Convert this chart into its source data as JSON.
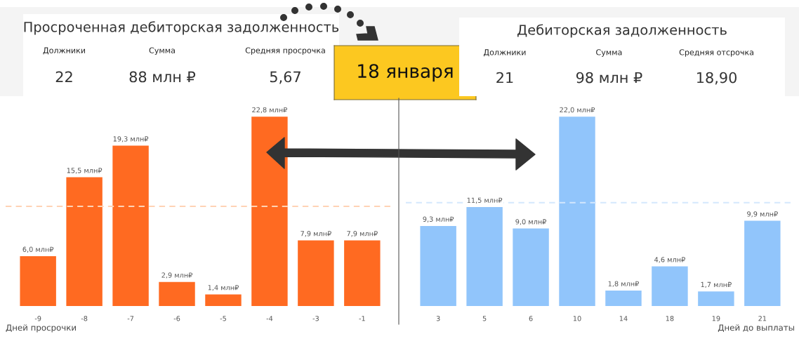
{
  "chart_data": [
    {
      "type": "other",
      "title": "Просроченная дебиторская задолженность",
      "categories": [
        "Должники",
        "Сумма",
        "Средняя просрочка"
      ],
      "value_labels": [
        "22",
        "88 млн ₽",
        "5,67"
      ]
    },
    {
      "type": "other",
      "title": "18 января"
    },
    {
      "type": "other",
      "title": "Дебиторская задолженность",
      "categories": [
        "Должники",
        "Сумма",
        "Средняя отсрочка"
      ],
      "value_labels": [
        "21",
        "98 млн ₽",
        "18,90"
      ]
    },
    {
      "type": "bar",
      "xlabel": "Дней просрочки",
      "categories": [
        "-9",
        "-8",
        "-7",
        "-6",
        "-5",
        "-4",
        "-3",
        "-1"
      ],
      "series": [
        {
          "color": "#ff6a21",
          "values": [
            6.0,
            15.5,
            19.3,
            2.9,
            1.4,
            22.8,
            7.9,
            7.9
          ],
          "value_labels": [
            "6,0 млн₽",
            "15,5 млн₽",
            "19,3 млн₽",
            "2,9 млн₽",
            "1,4 млн₽",
            "22,8 млн₽",
            "7,9 млн₽",
            "7,9 млн₽"
          ]
        }
      ],
      "ref_lines": [
        {
          "axis": "y",
          "value": 12.0,
          "color": "#ffd3b5",
          "line_style": "dashed"
        }
      ],
      "grid": false,
      "legend": false
    },
    {
      "type": "bar",
      "xlabel": "Дней до выплаты",
      "categories": [
        "3",
        "5",
        "6",
        "10",
        "14",
        "18",
        "19",
        "21"
      ],
      "series": [
        {
          "color": "#91c5fb",
          "values": [
            9.3,
            11.5,
            9.0,
            22.0,
            1.8,
            4.6,
            1.7,
            9.9
          ],
          "value_labels": [
            "9,3 млн₽",
            "11,5 млн₽",
            "9,0 млн₽",
            "22,0 млн₽",
            "1,8 млн₽",
            "4,6 млн₽",
            "1,7 млн₽",
            "9,9 млн₽"
          ]
        }
      ],
      "ref_lines": [
        {
          "axis": "y",
          "value": 12.0,
          "color": "#d4e8fd",
          "line_style": "dashed"
        }
      ],
      "grid": false,
      "legend": false
    }
  ]
}
